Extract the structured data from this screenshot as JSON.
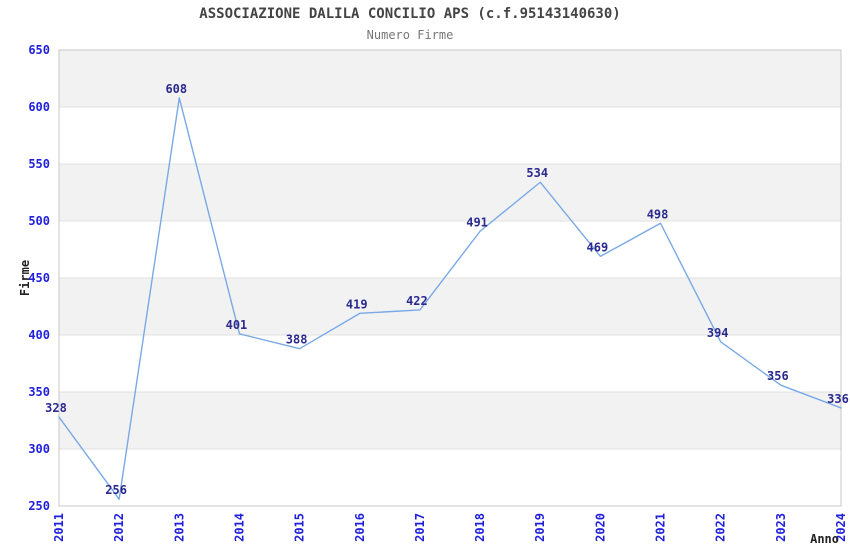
{
  "chart_data": {
    "type": "line",
    "title": "ASSOCIAZIONE DALILA CONCILIO APS (c.f.95143140630)",
    "subtitle": "Numero Firme",
    "xlabel": "Anno",
    "ylabel": "Firme",
    "x": [
      "2011",
      "2012",
      "2013",
      "2014",
      "2015",
      "2016",
      "2017",
      "2018",
      "2019",
      "2020",
      "2021",
      "2022",
      "2023",
      "2024"
    ],
    "values": [
      328,
      256,
      608,
      401,
      388,
      419,
      422,
      491,
      534,
      469,
      498,
      394,
      356,
      336
    ],
    "ylim": [
      250,
      650
    ],
    "ytick_step": 50,
    "grid": "horizontal-gridlines-with-alternating-bands",
    "legend": "none",
    "markers": "none",
    "colors": {
      "line": "#79a9e6",
      "tick_label": "#2121dd",
      "data_label": "#2a2a8e",
      "band": "#f2f2f2",
      "gridline": "#e0e0e0",
      "border": "#c8c8c8",
      "title": "#444444",
      "subtitle": "#777777",
      "axis_title": "#222222",
      "background": "#ffffff"
    }
  }
}
